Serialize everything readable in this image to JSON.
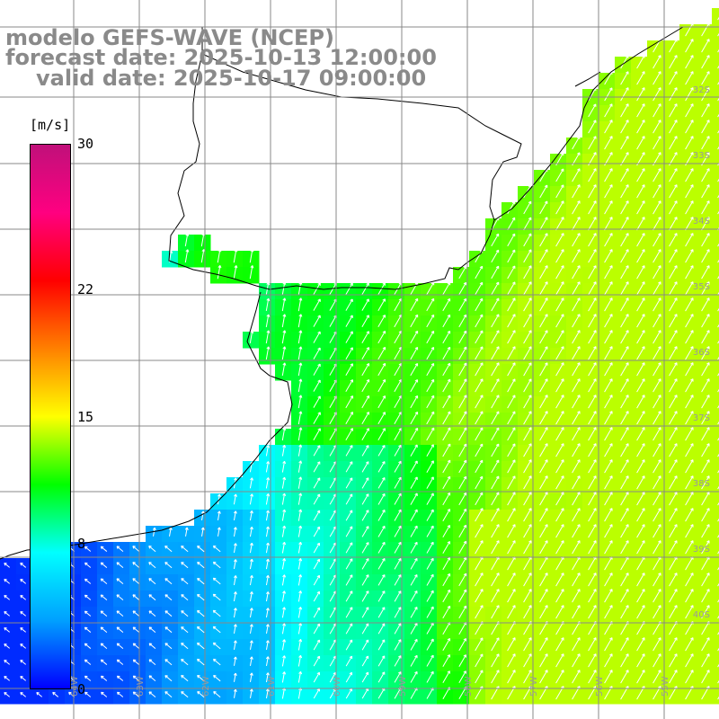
{
  "title": {
    "model": "modelo GEFS-WAVE (NCEP)",
    "forecast": "forecast date: 2025-10-13 12:00:00",
    "valid": "valid date: 2025-10-17 09:00:00"
  },
  "colorbar": {
    "units": "[m/s]",
    "ticks": [
      {
        "value": 30,
        "label": "30"
      },
      {
        "value": 22,
        "label": "22"
      },
      {
        "value": 15,
        "label": "15"
      },
      {
        "value": 8,
        "label": "8"
      },
      {
        "value": 0,
        "label": "0"
      }
    ],
    "colors": [
      "#0000ff",
      "#00a0ff",
      "#00ffff",
      "#00ff00",
      "#ffff00",
      "#ff8000",
      "#ff0000",
      "#ff0080",
      "#c0107a"
    ]
  },
  "grid": {
    "lat_labels": [
      "32S",
      "33S",
      "34S",
      "35S",
      "36S",
      "37S",
      "38S",
      "39S",
      "40S"
    ],
    "lon_labels": [
      "64W",
      "63W",
      "62W",
      "61W",
      "60W",
      "59W",
      "58W",
      "57W",
      "56W",
      "55W"
    ]
  },
  "colors": {
    "land": "#ffffff",
    "coast": "#000000",
    "grid": "#888888",
    "arrow": "#ffffff"
  }
}
